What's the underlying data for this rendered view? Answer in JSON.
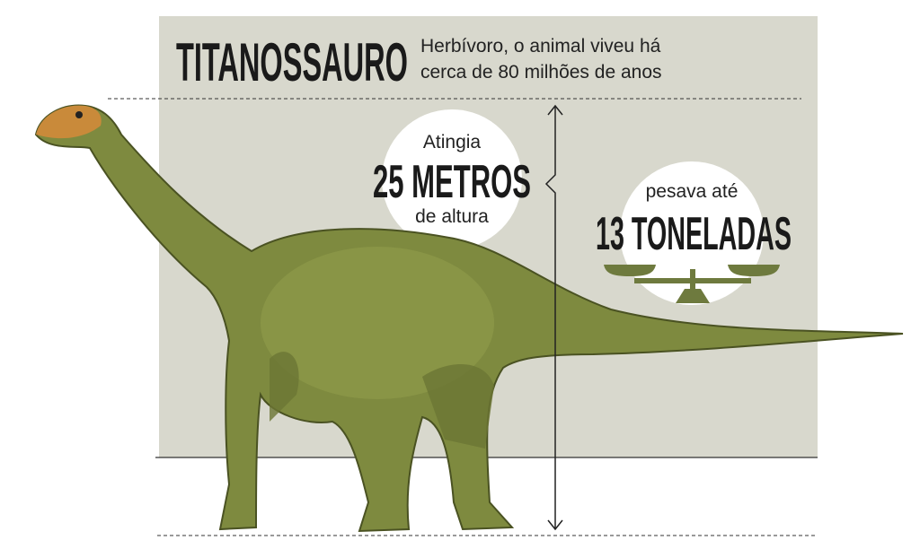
{
  "header": {
    "title": "TITANOSSAURO",
    "subtitle": [
      "Herbívoro, o animal viveu há",
      "cerca de 80 milhões de anos"
    ]
  },
  "height": {
    "before": "Atingia",
    "value": "25 METROS",
    "after": "de altura"
  },
  "weight": {
    "before": "pesava até",
    "value": "13 TONELADAS"
  }
}
